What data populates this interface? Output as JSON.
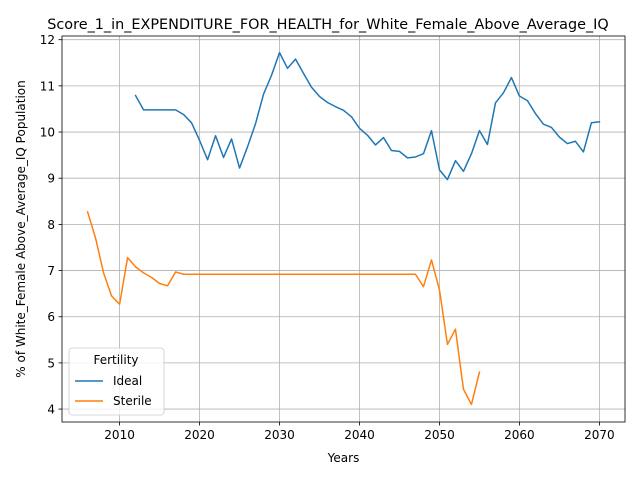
{
  "chart_data": {
    "type": "line",
    "title": "Score_1_in_EXPENDITURE_FOR_HEALTH_for_White_Female_Above_Average_IQ",
    "xlabel": "Years",
    "ylabel": "% of White_Female Above_Average_IQ Population",
    "xlim": [
      2002.8,
      2073.2
    ],
    "ylim": [
      3.72,
      12.08
    ],
    "xticks": [
      2010,
      2020,
      2030,
      2040,
      2050,
      2060,
      2070
    ],
    "yticks": [
      4,
      5,
      6,
      7,
      8,
      9,
      10,
      11,
      12
    ],
    "grid": true,
    "legend": {
      "title": "Fertility",
      "placement": "lower-left"
    },
    "series": [
      {
        "name": "Ideal",
        "color": "#1f77b4",
        "x": [
          2012,
          2013,
          2014,
          2015,
          2016,
          2017,
          2018,
          2019,
          2020,
          2021,
          2022,
          2023,
          2024,
          2025,
          2026,
          2027,
          2028,
          2029,
          2030,
          2031,
          2032,
          2033,
          2034,
          2035,
          2036,
          2037,
          2038,
          2039,
          2040,
          2041,
          2042,
          2043,
          2044,
          2045,
          2046,
          2047,
          2048,
          2049,
          2050,
          2051,
          2052,
          2053,
          2054,
          2055,
          2056,
          2057,
          2058,
          2059,
          2060,
          2061,
          2062,
          2063,
          2064,
          2065,
          2066,
          2067,
          2068,
          2069,
          2070
        ],
        "y": [
          10.79,
          10.48,
          10.48,
          10.48,
          10.48,
          10.48,
          10.38,
          10.2,
          9.82,
          9.4,
          9.92,
          9.45,
          9.85,
          9.22,
          9.68,
          10.18,
          10.82,
          11.23,
          11.72,
          11.38,
          11.58,
          11.27,
          10.97,
          10.77,
          10.64,
          10.55,
          10.47,
          10.33,
          10.08,
          9.93,
          9.72,
          9.88,
          9.6,
          9.58,
          9.44,
          9.46,
          9.53,
          10.03,
          9.18,
          8.97,
          9.38,
          9.15,
          9.53,
          10.03,
          9.73,
          10.63,
          10.85,
          11.18,
          10.78,
          10.68,
          10.4,
          10.17,
          10.1,
          9.89,
          9.75,
          9.8,
          9.57,
          10.2,
          10.22
        ]
      },
      {
        "name": "Sterile",
        "color": "#ff7f0e",
        "x": [
          2006,
          2007,
          2008,
          2009,
          2010,
          2011,
          2012,
          2013,
          2014,
          2015,
          2016,
          2017,
          2018,
          2019,
          2020,
          2021,
          2022,
          2023,
          2024,
          2025,
          2026,
          2027,
          2028,
          2029,
          2030,
          2031,
          2032,
          2033,
          2034,
          2035,
          2036,
          2037,
          2038,
          2039,
          2040,
          2041,
          2042,
          2043,
          2044,
          2045,
          2046,
          2047,
          2048,
          2049,
          2050,
          2051,
          2052,
          2053,
          2054,
          2055
        ],
        "y": [
          8.27,
          7.7,
          6.95,
          6.45,
          6.27,
          7.28,
          7.08,
          6.95,
          6.85,
          6.72,
          6.67,
          6.97,
          6.92,
          6.92,
          6.92,
          6.92,
          6.92,
          6.92,
          6.92,
          6.92,
          6.92,
          6.92,
          6.92,
          6.92,
          6.92,
          6.92,
          6.92,
          6.92,
          6.92,
          6.92,
          6.92,
          6.92,
          6.92,
          6.92,
          6.92,
          6.92,
          6.92,
          6.92,
          6.92,
          6.92,
          6.92,
          6.92,
          6.65,
          7.23,
          6.58,
          5.4,
          5.73,
          4.43,
          4.1,
          4.8
        ]
      }
    ]
  }
}
